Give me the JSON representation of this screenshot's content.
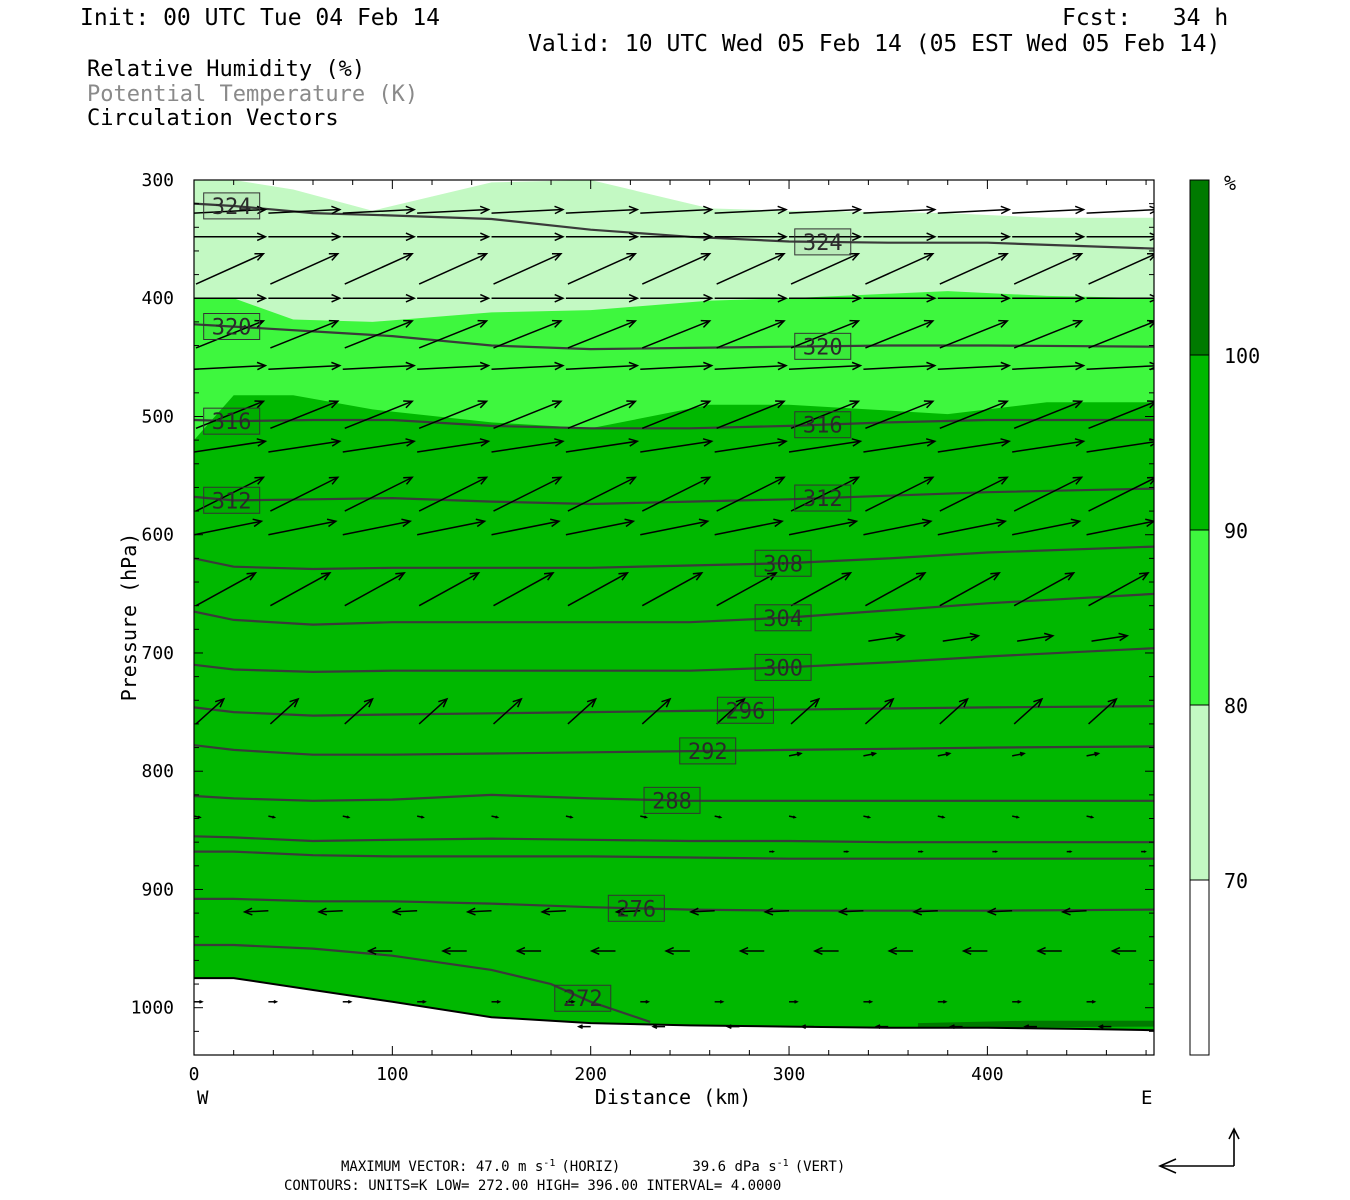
{
  "header": {
    "init": "Init: 00 UTC Tue 04 Feb 14",
    "fcst": "Fcst:   34 h",
    "valid": "Valid: 10 UTC Wed 05 Feb 14 (05 EST Wed 05 Feb 14)"
  },
  "legend": {
    "line1": "Relative Humidity (%)",
    "line2": "Potential Temperature (K)",
    "line3": "Circulation Vectors"
  },
  "colors": {
    "rh_70_80": "#c3f9c3",
    "rh_80_90": "#3ef73e",
    "rh_90_100": "#00b800",
    "rh_100": "#007a00",
    "theta_contour": "#3a3a3a",
    "vector": "#000000"
  },
  "colorbar": {
    "unit": "%",
    "ticks": [
      "100",
      "90",
      "80",
      "70"
    ]
  },
  "footer": {
    "line1a": "MAXIMUM VECTOR:  47.0 m s",
    "line1b": "(HORIZ)",
    "line1c": "39.6 dPa s",
    "line1d": "(VERT)",
    "exp": "-1",
    "line2": "CONTOURS:  UNITS=K  LOW=  272.00       HIGH=  396.00        INTERVAL=    4.0000"
  },
  "chart_data": {
    "type": "cross-section",
    "xlabel": "Distance (km)",
    "ylabel": "Pressure (hPa)",
    "x_ticks": [
      "0",
      "100",
      "200",
      "300",
      "400"
    ],
    "y_ticks": [
      "300",
      "400",
      "500",
      "600",
      "700",
      "800",
      "900",
      "1000"
    ],
    "xlim": [
      0,
      484
    ],
    "ylim": [
      300,
      1040
    ],
    "x_end_labels": {
      "left": "W",
      "right": "E"
    },
    "rh_bins": [
      {
        "range": "70-80",
        "color": "#c3f9c3"
      },
      {
        "range": "80-90",
        "color": "#3ef73e"
      },
      {
        "range": "90-100",
        "color": "#00b800"
      },
      {
        "range": ">100",
        "color": "#007a00"
      }
    ],
    "rh_boundaries": {
      "x": [
        0,
        20,
        50,
        90,
        150,
        200,
        260,
        300,
        380,
        430,
        484
      ],
      "top_70": [
        300,
        300,
        308,
        326,
        302,
        300,
        324,
        326,
        328,
        332,
        332
      ],
      "top_80": [
        400,
        400,
        418,
        420,
        412,
        410,
        402,
        400,
        394,
        398,
        400
      ],
      "top_90": [
        520,
        482,
        482,
        494,
        505,
        510,
        490,
        490,
        498,
        488,
        488
      ]
    },
    "ground": {
      "x": [
        0,
        20,
        60,
        100,
        150,
        200,
        250,
        300,
        350,
        400,
        450,
        484
      ],
      "p": [
        975,
        975,
        985,
        995,
        1008,
        1013,
        1015,
        1016,
        1017,
        1017,
        1018,
        1019
      ]
    },
    "theta_contours": [
      {
        "value": 324,
        "label": "324",
        "x": [
          0,
          20,
          60,
          100,
          150,
          200,
          250,
          300,
          350,
          400,
          484
        ],
        "p": [
          320,
          322,
          328,
          330,
          333,
          342,
          348,
          352,
          353,
          353,
          358
        ]
      },
      {
        "value": 320,
        "label": "320",
        "x": [
          0,
          20,
          60,
          100,
          150,
          200,
          250,
          300,
          350,
          400,
          484
        ],
        "p": [
          422,
          424,
          428,
          432,
          440,
          443,
          442,
          441,
          440,
          440,
          441
        ]
      },
      {
        "value": 316,
        "label": "316",
        "x": [
          0,
          20,
          60,
          100,
          150,
          200,
          250,
          300,
          350,
          400,
          484
        ],
        "p": [
          503,
          504,
          503,
          503,
          508,
          510,
          510,
          508,
          505,
          503,
          503
        ]
      },
      {
        "value": 312,
        "label": "312",
        "x": [
          0,
          20,
          60,
          100,
          150,
          200,
          250,
          300,
          350,
          400,
          484
        ],
        "p": [
          568,
          571,
          570,
          569,
          572,
          574,
          572,
          570,
          567,
          564,
          561
        ]
      },
      {
        "value": 308,
        "label": "308",
        "x": [
          0,
          20,
          60,
          100,
          150,
          200,
          250,
          300,
          350,
          400,
          484
        ],
        "p": [
          620,
          627,
          629,
          628,
          628,
          628,
          626,
          624,
          620,
          615,
          610
        ]
      },
      {
        "value": 304,
        "label": "304",
        "x": [
          0,
          20,
          60,
          100,
          150,
          200,
          250,
          300,
          350,
          400,
          484
        ],
        "p": [
          665,
          672,
          676,
          674,
          674,
          674,
          674,
          670,
          664,
          658,
          650
        ]
      },
      {
        "value": 300,
        "label": "300",
        "x": [
          0,
          20,
          60,
          100,
          150,
          200,
          250,
          300,
          350,
          400,
          484
        ],
        "p": [
          710,
          714,
          716,
          715,
          715,
          715,
          715,
          712,
          708,
          703,
          696
        ]
      },
      {
        "value": 296,
        "label": "296",
        "x": [
          0,
          20,
          60,
          100,
          150,
          200,
          250,
          300,
          350,
          400,
          484
        ],
        "p": [
          746,
          750,
          753,
          752,
          751,
          750,
          749,
          748,
          747,
          746,
          745
        ]
      },
      {
        "value": 292,
        "label": "292",
        "x": [
          0,
          20,
          60,
          100,
          150,
          200,
          250,
          300,
          350,
          400,
          484
        ],
        "p": [
          778,
          782,
          786,
          786,
          785,
          784,
          783,
          782,
          781,
          780,
          779
        ]
      },
      {
        "value": 288,
        "label": "288",
        "x": [
          0,
          20,
          60,
          100,
          150,
          200,
          250,
          300,
          350,
          400,
          484
        ],
        "p": [
          821,
          823,
          825,
          824,
          820,
          823,
          825,
          825,
          825,
          825,
          825
        ]
      },
      {
        "value": 284,
        "label": "",
        "x": [
          0,
          20,
          60,
          100,
          150,
          200,
          250,
          300,
          350,
          400,
          484
        ],
        "p": [
          855,
          856,
          859,
          858,
          857,
          858,
          859,
          859,
          860,
          860,
          860
        ]
      },
      {
        "value": 280,
        "label": "",
        "x": [
          0,
          20,
          60,
          100,
          150,
          200,
          250,
          300,
          350,
          400,
          484
        ],
        "p": [
          868,
          868,
          871,
          872,
          872,
          872,
          873,
          874,
          874,
          874,
          874
        ]
      },
      {
        "value": 276,
        "label": "276",
        "x": [
          0,
          20,
          60,
          100,
          150,
          200,
          250,
          300,
          350,
          400,
          484
        ],
        "p": [
          908,
          908,
          910,
          910,
          912,
          915,
          917,
          918,
          918,
          918,
          917
        ]
      },
      {
        "value": 272,
        "label": "272",
        "x": [
          0,
          20,
          60,
          100,
          150,
          180,
          200,
          230
        ],
        "p": [
          947,
          947,
          950,
          956,
          968,
          980,
          995,
          1012
        ]
      }
    ],
    "label_positions": [
      {
        "value": 324,
        "x": [
          19,
          317
        ]
      },
      {
        "value": 320,
        "x": [
          19,
          317
        ]
      },
      {
        "value": 316,
        "x": [
          19,
          317
        ]
      },
      {
        "value": 312,
        "x": [
          19,
          317
        ]
      },
      {
        "value": 308,
        "x": [
          297
        ]
      },
      {
        "value": 304,
        "x": [
          297
        ]
      },
      {
        "value": 300,
        "x": [
          297
        ]
      },
      {
        "value": 296,
        "x": [
          278
        ]
      },
      {
        "value": 292,
        "x": [
          259
        ]
      },
      {
        "value": 288,
        "x": [
          241
        ]
      },
      {
        "value": 276,
        "x": [
          223
        ]
      },
      {
        "value": 272,
        "x": [
          196
        ]
      }
    ],
    "vector_rows": [
      {
        "p": 328,
        "start": 0,
        "u": 36,
        "w": -0.05,
        "tilt": 0
      },
      {
        "p": 348,
        "start": 0,
        "u": 36,
        "w": 0,
        "tilt": 0
      },
      {
        "p": 388,
        "start": 0,
        "u": 34,
        "w": -0.45,
        "tilt": 1
      },
      {
        "p": 400,
        "start": 0,
        "u": 36,
        "w": 0,
        "tilt": 0
      },
      {
        "p": 442,
        "start": 0,
        "u": 34,
        "w": -0.4,
        "tilt": 1
      },
      {
        "p": 460,
        "start": 0,
        "u": 36,
        "w": -0.05,
        "tilt": 0
      },
      {
        "p": 510,
        "start": 0,
        "u": 34,
        "w": -0.4,
        "tilt": 1
      },
      {
        "p": 530,
        "start": 0,
        "u": 36,
        "w": -0.15,
        "tilt": 0
      },
      {
        "p": 580,
        "start": 0,
        "u": 34,
        "w": -0.5,
        "tilt": 1
      },
      {
        "p": 600,
        "start": 0,
        "u": 34,
        "w": -0.2,
        "tilt": 0
      },
      {
        "p": 660,
        "start": 0,
        "u": 30,
        "w": -0.55,
        "tilt": 1
      },
      {
        "p": 690,
        "start": 340,
        "u": 18,
        "w": -0.15,
        "tilt": 0
      },
      {
        "p": 760,
        "start": 0,
        "u": 14,
        "w": -0.9,
        "tilt": 1
      },
      {
        "p": 787,
        "start": 300,
        "u": 6,
        "w": -0.2,
        "tilt": 0
      },
      {
        "p": 838,
        "start": 0,
        "u": 3,
        "w": 0.2,
        "tilt": 0
      },
      {
        "p": 868,
        "start": 290,
        "u": 2,
        "w": 0,
        "tilt": 0
      },
      {
        "p": 918,
        "start": 0,
        "u": -12,
        "w": 0.05,
        "tilt": 0
      },
      {
        "p": 952,
        "start": 100,
        "u": -12,
        "w": 0,
        "tilt": 0
      },
      {
        "p": 995,
        "start": 0,
        "u": 4,
        "w": 0,
        "tilt": 0
      },
      {
        "p": 1016,
        "start": 200,
        "u": -6,
        "w": 0,
        "tilt": 0
      }
    ]
  }
}
